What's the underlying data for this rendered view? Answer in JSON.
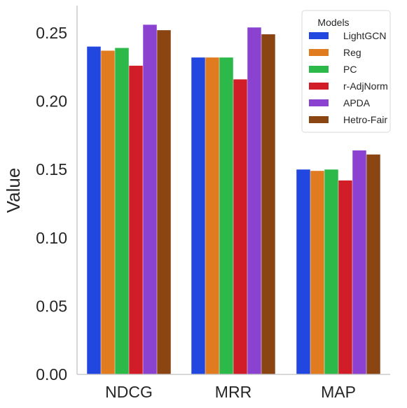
{
  "chart_data": {
    "type": "bar",
    "title": "",
    "xlabel": "",
    "ylabel": "Value",
    "ylim": [
      0,
      0.27
    ],
    "yticks": [
      "0.00",
      "0.05",
      "0.10",
      "0.15",
      "0.20",
      "0.25"
    ],
    "ytick_values": [
      0,
      0.05,
      0.1,
      0.15,
      0.2,
      0.25
    ],
    "grid": false,
    "legend": {
      "title": "Models",
      "placement": "top-right"
    },
    "categories": [
      "NDCG",
      "MRR",
      "MAP"
    ],
    "series": [
      {
        "name": "LightGCN",
        "color": "#2147e0",
        "values": [
          0.24,
          0.232,
          0.15
        ]
      },
      {
        "name": "Reg",
        "color": "#e07b1f",
        "values": [
          0.237,
          0.232,
          0.149
        ]
      },
      {
        "name": "PC",
        "color": "#2db84a",
        "values": [
          0.239,
          0.232,
          0.15
        ]
      },
      {
        "name": "r-AdjNorm",
        "color": "#d11d27",
        "values": [
          0.226,
          0.216,
          0.142
        ]
      },
      {
        "name": "APDA",
        "color": "#8b42d1",
        "values": [
          0.256,
          0.254,
          0.164
        ]
      },
      {
        "name": "Hetro-Fair",
        "color": "#8b4513",
        "values": [
          0.252,
          0.249,
          0.161
        ]
      }
    ]
  }
}
